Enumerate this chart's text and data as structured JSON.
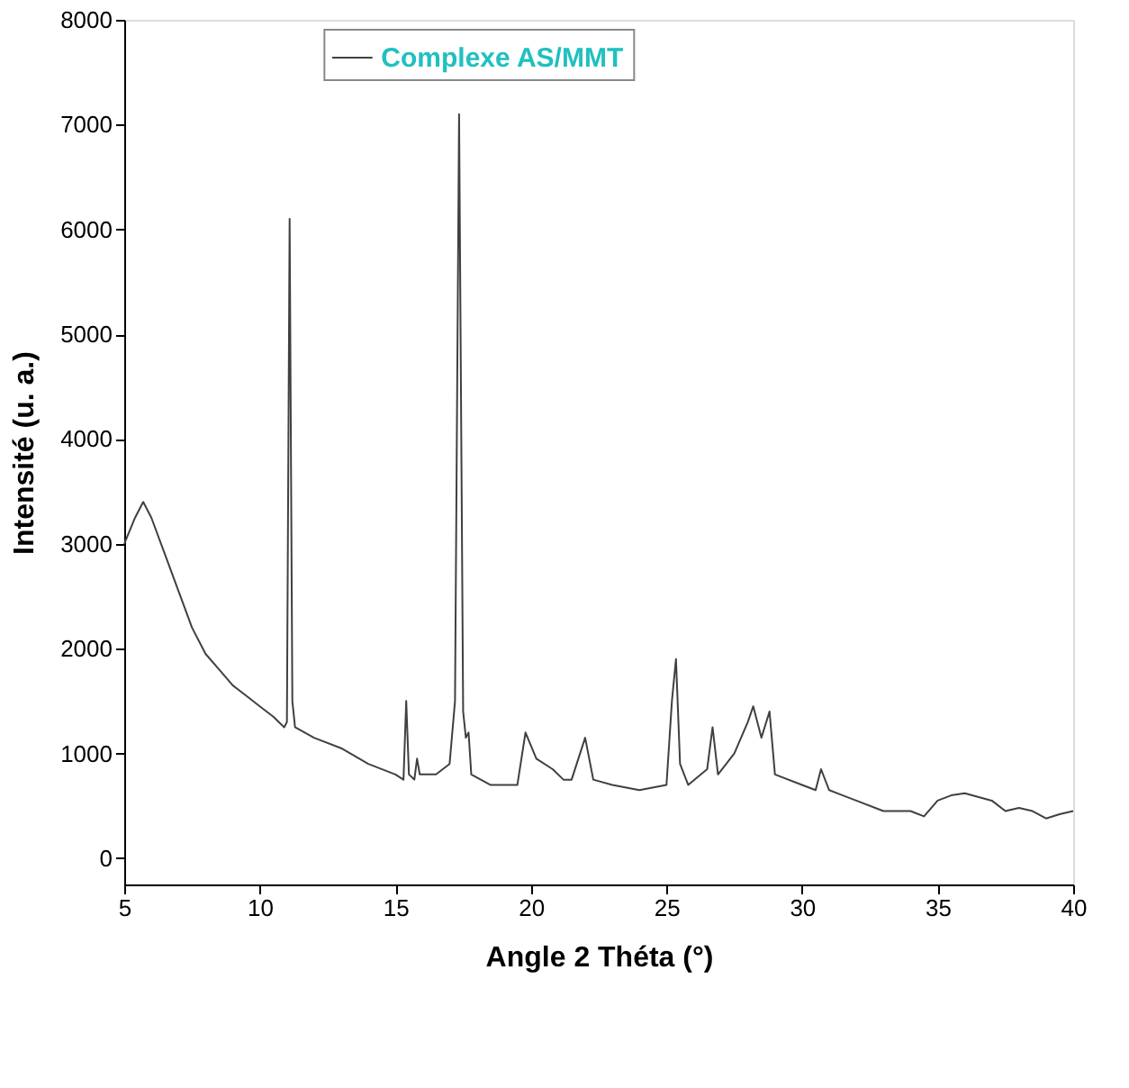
{
  "chart_data": {
    "type": "line",
    "xlabel": "Angle 2 Théta (°)",
    "ylabel": "Intensité (u. a.)",
    "xlim": [
      5,
      40
    ],
    "xticks": [
      5,
      10,
      15,
      20,
      25,
      30,
      35,
      40
    ],
    "ylim": [
      -250,
      8000
    ],
    "yticks": [
      0,
      1000,
      2000,
      3000,
      4000,
      5000,
      6000,
      7000,
      8000
    ],
    "grid": false,
    "legend": "top",
    "series": [
      {
        "name": "Complexe AS/MMT",
        "color": "#404040",
        "x": [
          5.0,
          5.4,
          5.7,
          6.0,
          6.5,
          7.0,
          7.5,
          8.0,
          8.5,
          9.0,
          9.5,
          10.0,
          10.5,
          10.9,
          11.0,
          11.1,
          11.2,
          11.3,
          12.0,
          13.0,
          14.0,
          15.0,
          15.3,
          15.4,
          15.5,
          15.7,
          15.8,
          15.9,
          16.5,
          17.0,
          17.2,
          17.35,
          17.5,
          17.6,
          17.7,
          17.8,
          18.5,
          19.5,
          19.8,
          20.2,
          20.8,
          21.2,
          21.5,
          22.0,
          22.3,
          23.0,
          24.0,
          25.0,
          25.2,
          25.35,
          25.5,
          25.8,
          26.5,
          26.7,
          26.9,
          27.5,
          28.0,
          28.2,
          28.5,
          28.8,
          29.0,
          30.0,
          30.5,
          30.7,
          31.0,
          31.5,
          32.0,
          33.0,
          34.0,
          34.5,
          35.0,
          35.5,
          36.0,
          37.0,
          37.5,
          38.0,
          38.5,
          39.0,
          39.5,
          40.0
        ],
        "values": [
          3000,
          3250,
          3400,
          3250,
          2900,
          2550,
          2200,
          1950,
          1800,
          1650,
          1550,
          1450,
          1350,
          1250,
          1300,
          6100,
          1500,
          1250,
          1150,
          1050,
          900,
          800,
          750,
          1500,
          800,
          750,
          950,
          800,
          800,
          900,
          1500,
          7100,
          1400,
          1150,
          1200,
          800,
          700,
          700,
          1200,
          950,
          850,
          750,
          750,
          1150,
          750,
          700,
          650,
          700,
          1500,
          1900,
          900,
          700,
          850,
          1250,
          800,
          1000,
          1300,
          1450,
          1150,
          1400,
          800,
          700,
          650,
          850,
          650,
          600,
          550,
          450,
          450,
          400,
          550,
          600,
          620,
          550,
          450,
          480,
          450,
          380,
          420,
          450
        ]
      }
    ]
  }
}
